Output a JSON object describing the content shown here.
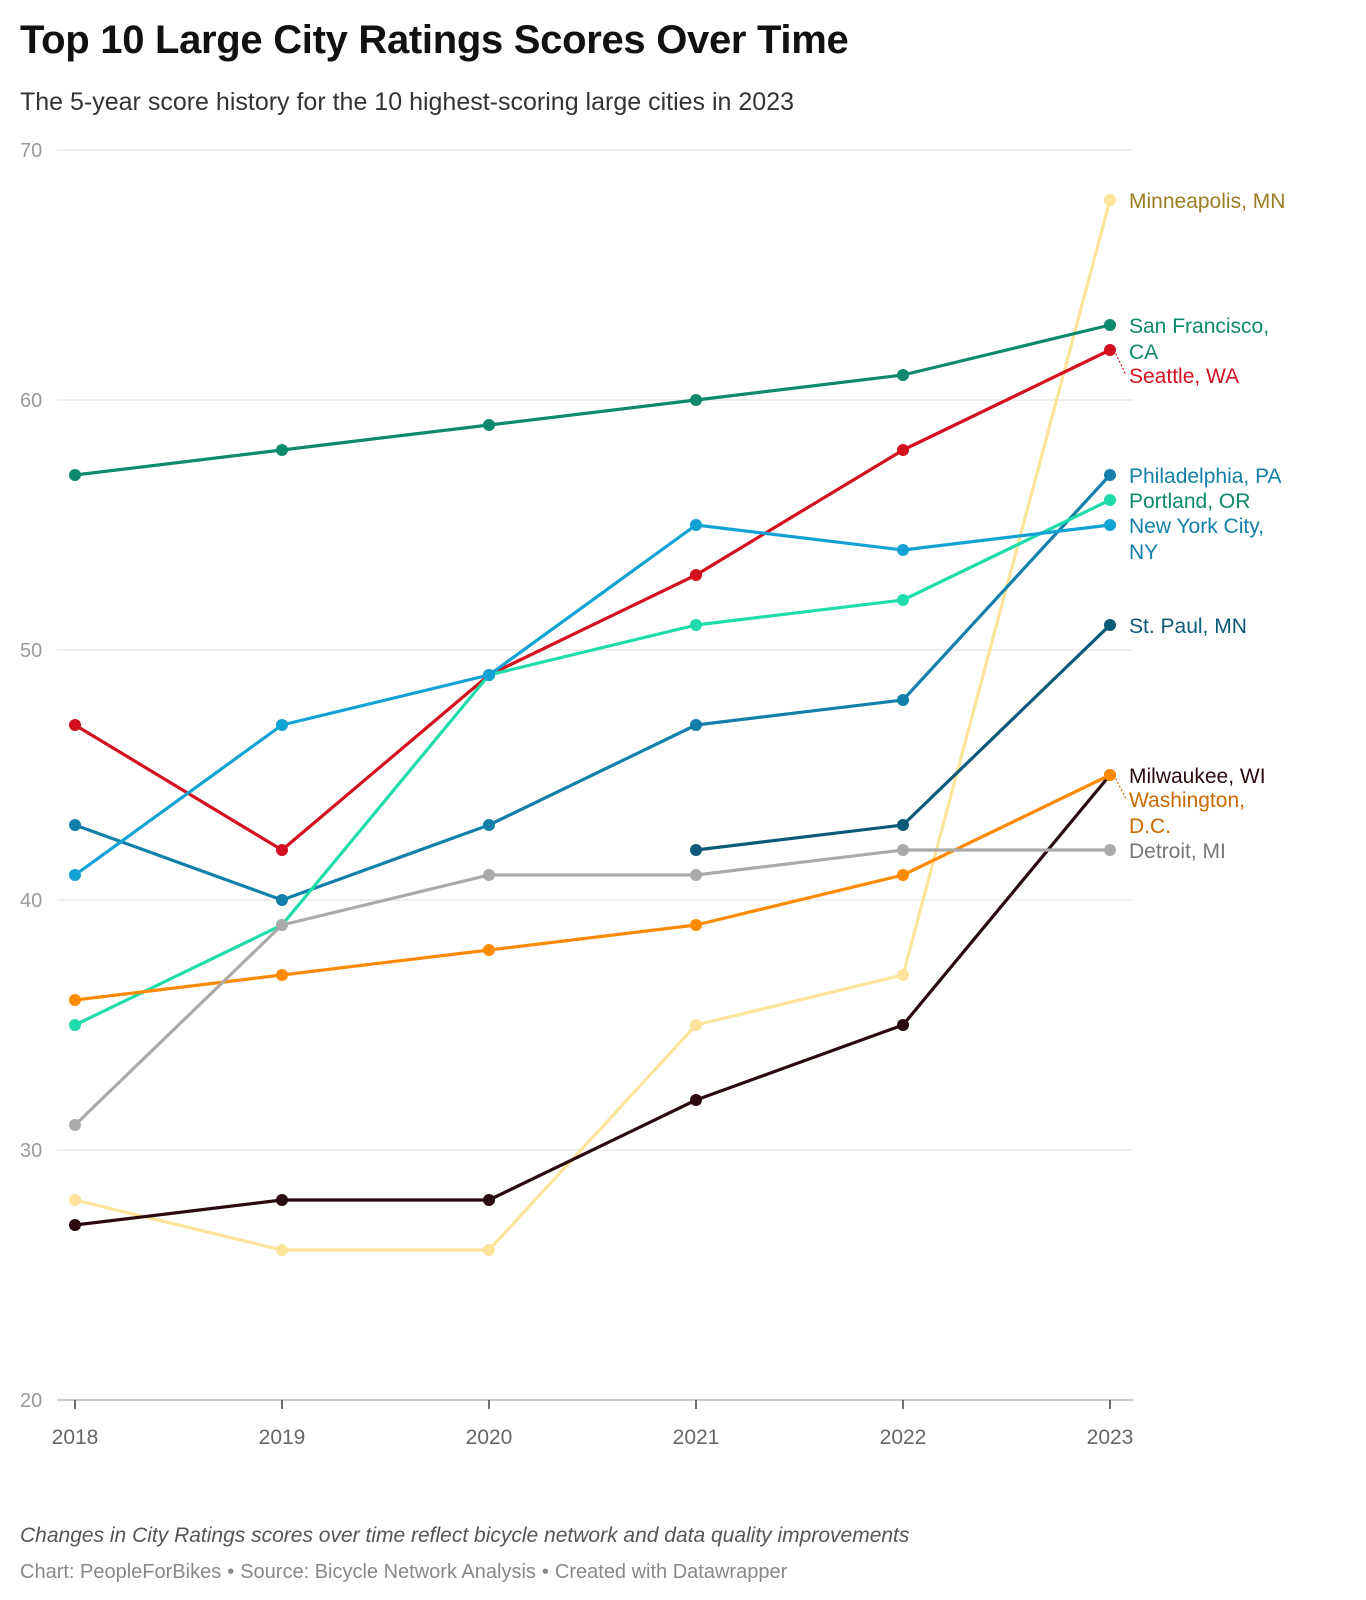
{
  "header": {
    "title": "Top 10 Large City Ratings Scores Over Time",
    "subtitle": "The 5-year score history for the 10 highest-scoring large cities in 2023"
  },
  "footer": {
    "notes": "Changes in City Ratings scores over time reflect bicycle network and data quality improvements",
    "chart_credit": "Chart: PeopleForBikes",
    "source": "Source: Bicycle Network Analysis",
    "created_with": "Created with Datawrapper",
    "separator": "•"
  },
  "chart_data": {
    "type": "line",
    "title": "Top 10 Large City Ratings Scores Over Time",
    "xlabel": "",
    "ylabel": "",
    "x": [
      "2018",
      "2019",
      "2020",
      "2021",
      "2022",
      "2023"
    ],
    "ylim": [
      20,
      70
    ],
    "yticks": [
      20,
      30,
      40,
      50,
      60,
      70
    ],
    "grid": true,
    "series": [
      {
        "name": "Minneapolis, MN",
        "label_lines": [
          "Minneapolis, MN"
        ],
        "color": "#fde49a",
        "label_color": "#9c7d23",
        "values": [
          28,
          26,
          26,
          35,
          37,
          68
        ]
      },
      {
        "name": "San Francisco, CA",
        "label_lines": [
          "San Francisco,",
          "CA"
        ],
        "color": "#0d8a6c",
        "label_color": "#0d8a6c",
        "values": [
          57,
          58,
          59,
          60,
          61,
          63
        ]
      },
      {
        "name": "Seattle, WA",
        "label_lines": [
          "Seattle, WA"
        ],
        "color": "#d4101f",
        "label_color": "#d4101f",
        "values": [
          47,
          42,
          49,
          53,
          58,
          62
        ]
      },
      {
        "name": "Philadelphia, PA",
        "label_lines": [
          "Philadelphia, PA"
        ],
        "color": "#1280a8",
        "label_color": "#1280a8",
        "values": [
          43,
          40,
          43,
          47,
          48,
          57
        ]
      },
      {
        "name": "Portland, OR",
        "label_lines": [
          "Portland, OR"
        ],
        "color": "#1fdcab",
        "label_color": "#0d8a6c",
        "values": [
          35,
          39,
          49,
          51,
          52,
          56
        ]
      },
      {
        "name": "New York City, NY",
        "label_lines": [
          "New York City,",
          "NY"
        ],
        "color": "#12a2d3",
        "label_color": "#1280a8",
        "values": [
          41,
          47,
          49,
          55,
          54,
          55
        ]
      },
      {
        "name": "St. Paul, MN",
        "label_lines": [
          "St. Paul, MN"
        ],
        "color": "#0b5a78",
        "label_color": "#0b5a78",
        "values": [
          null,
          null,
          null,
          42,
          43,
          51
        ]
      },
      {
        "name": "Milwaukee, WI",
        "label_lines": [
          "Milwaukee, WI"
        ],
        "color": "#2b0a0f",
        "label_color": "#2b0a0f",
        "values": [
          27,
          28,
          28,
          32,
          35,
          45
        ]
      },
      {
        "name": "Washington, D.C.",
        "label_lines": [
          "Washington,",
          "D.C."
        ],
        "color": "#ff8a00",
        "label_color": "#c96a00",
        "values": [
          36,
          37,
          38,
          39,
          41,
          45
        ]
      },
      {
        "name": "Detroit, MI",
        "label_lines": [
          "Detroit, MI"
        ],
        "color": "#aaaaaa",
        "label_color": "#777777",
        "values": [
          31,
          39,
          41,
          41,
          42,
          42
        ]
      }
    ]
  }
}
